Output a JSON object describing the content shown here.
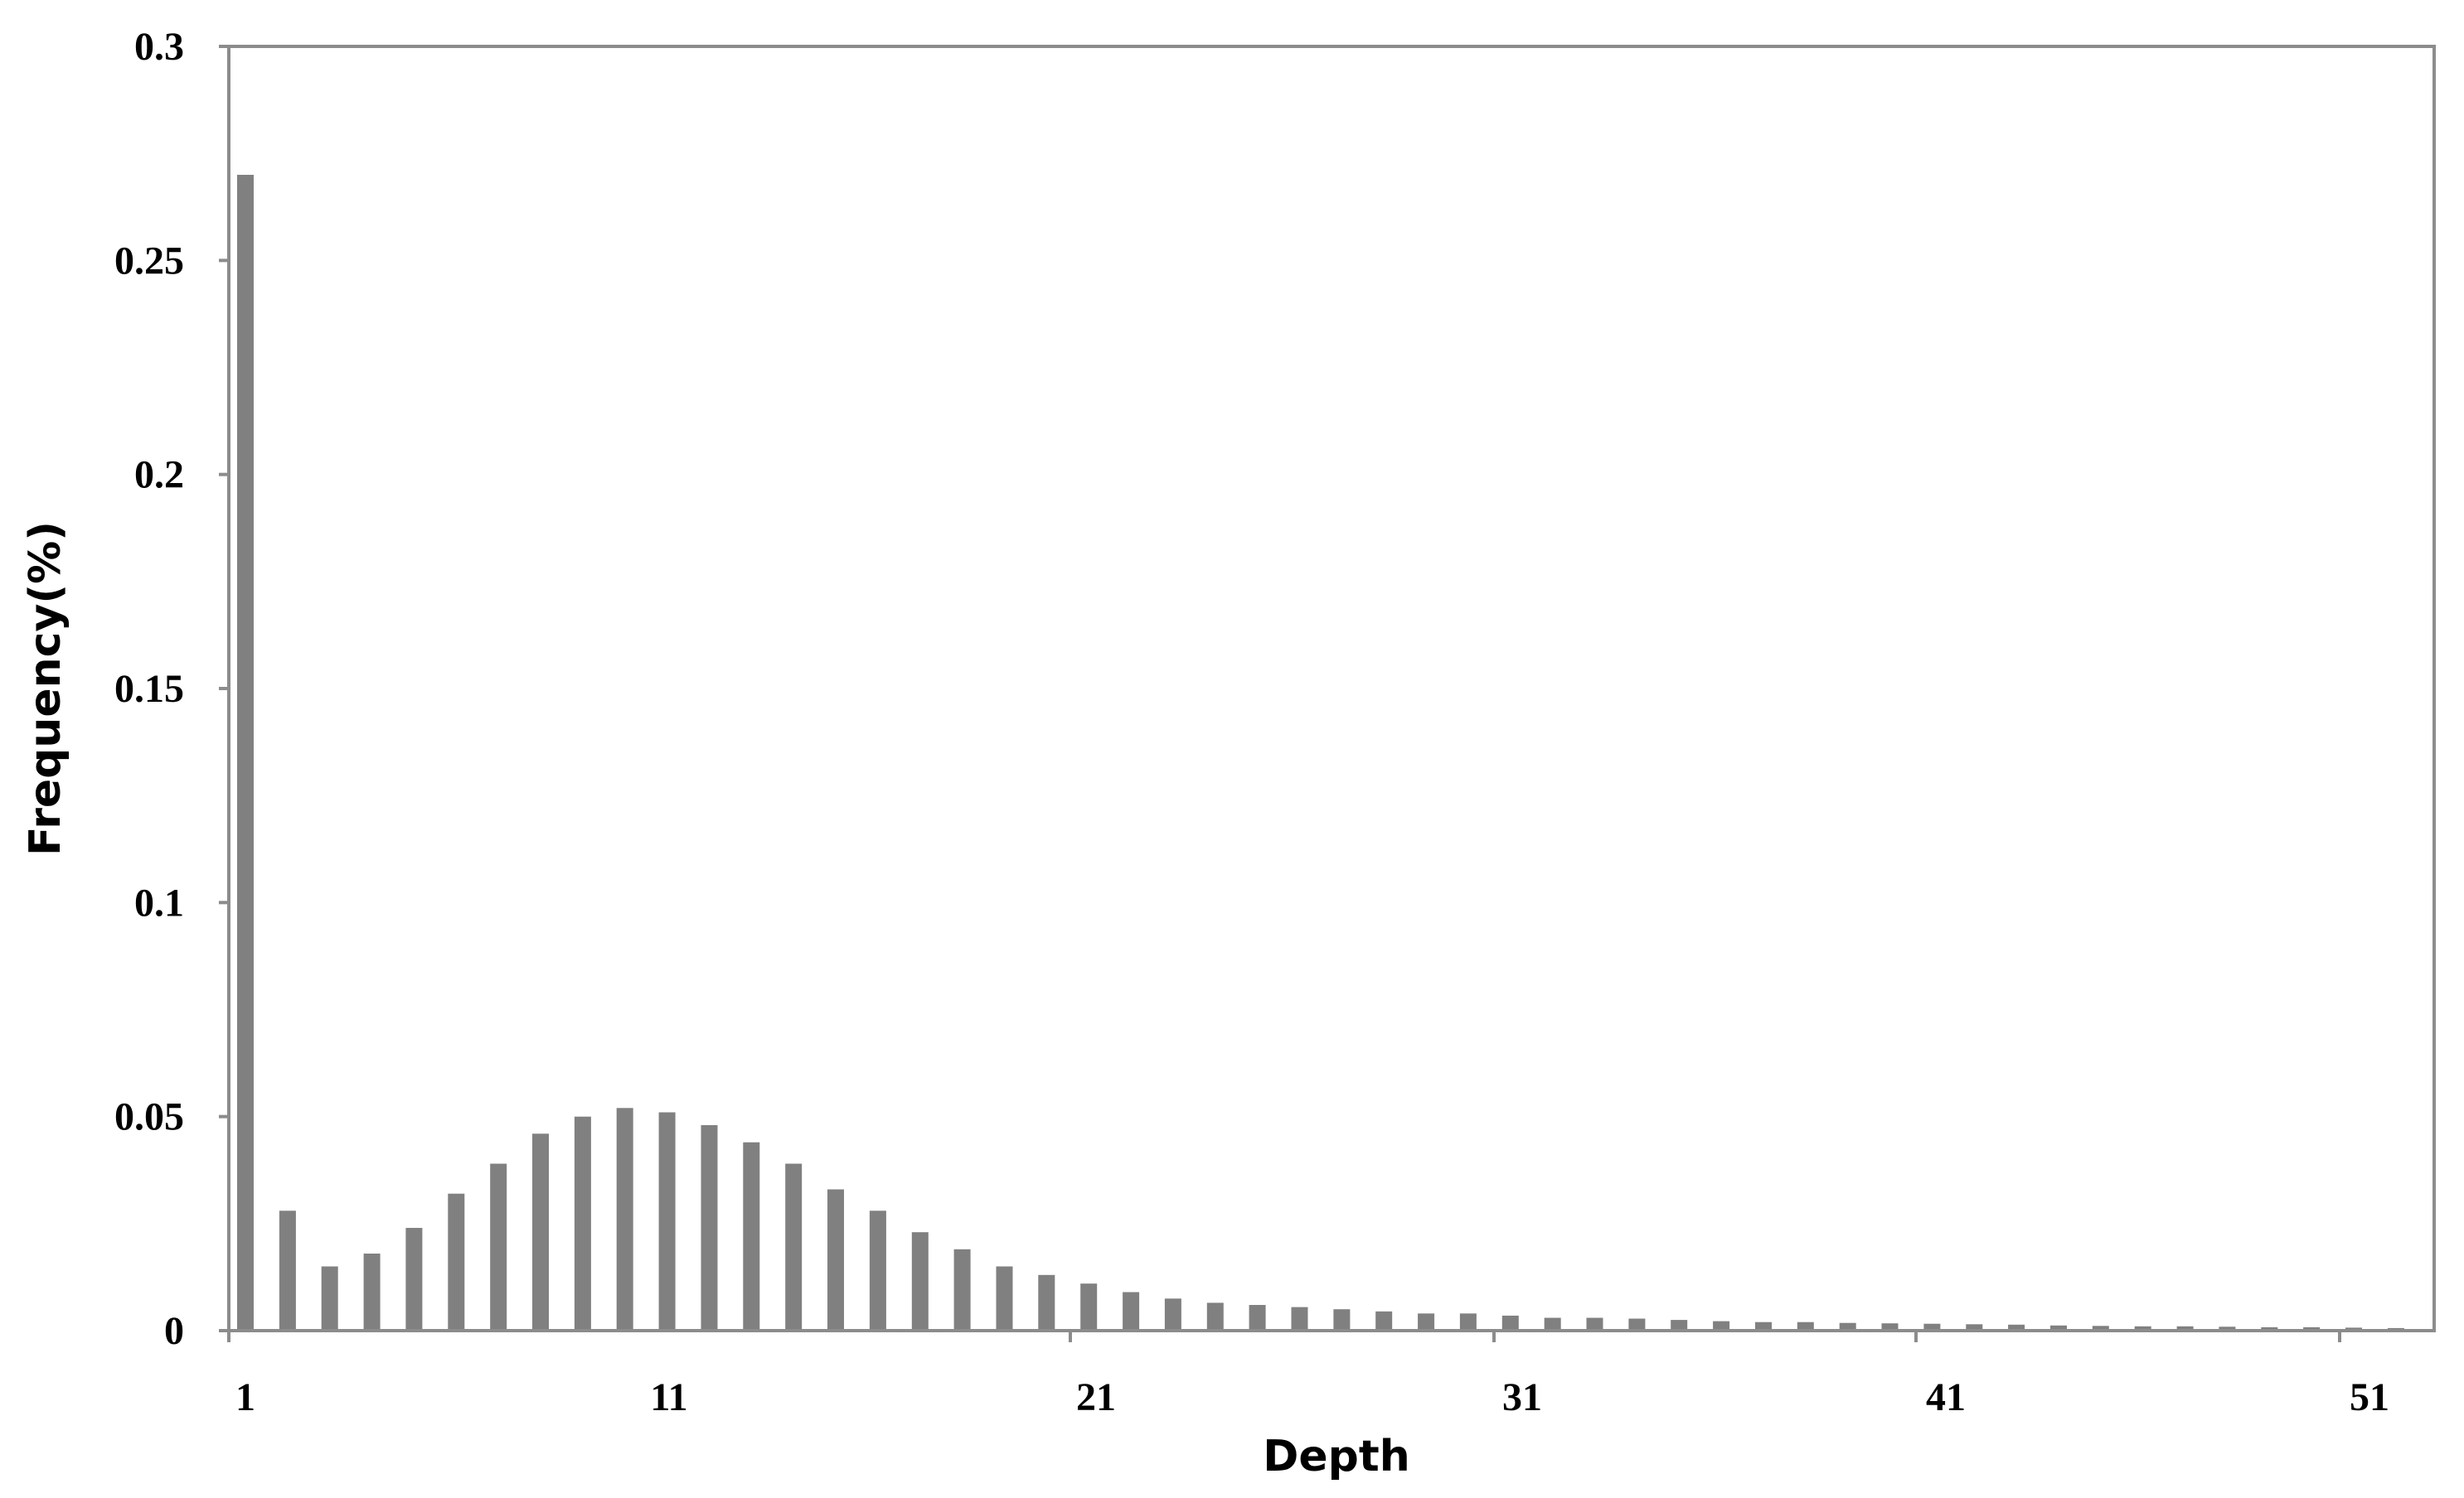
{
  "chart_data": {
    "type": "bar",
    "title": "",
    "xlabel": "Depth",
    "ylabel": "Frequency(%)",
    "x_tick_labels": [
      "1",
      "11",
      "21",
      "31",
      "41",
      "51"
    ],
    "y_tick_labels": [
      "0",
      "0.05",
      "0.1",
      "0.15",
      "0.2",
      "0.25",
      "0.3"
    ],
    "ylim": [
      0,
      0.3
    ],
    "grid": false,
    "legend": "none",
    "bar_color": "#808080",
    "categories": [
      1,
      2,
      3,
      4,
      5,
      6,
      7,
      8,
      9,
      10,
      11,
      12,
      13,
      14,
      15,
      16,
      17,
      18,
      19,
      20,
      21,
      22,
      23,
      24,
      25,
      26,
      27,
      28,
      29,
      30,
      31,
      32,
      33,
      34,
      35,
      36,
      37,
      38,
      39,
      40,
      41,
      42,
      43,
      44,
      45,
      46,
      47,
      48,
      49,
      50,
      51,
      52
    ],
    "values": [
      0.27,
      0.028,
      0.015,
      0.018,
      0.024,
      0.032,
      0.039,
      0.046,
      0.05,
      0.052,
      0.051,
      0.048,
      0.044,
      0.039,
      0.033,
      0.028,
      0.023,
      0.019,
      0.015,
      0.013,
      0.011,
      0.009,
      0.0075,
      0.0065,
      0.006,
      0.0055,
      0.005,
      0.0045,
      0.004,
      0.004,
      0.0035,
      0.003,
      0.003,
      0.0028,
      0.0025,
      0.0022,
      0.002,
      0.002,
      0.0018,
      0.0017,
      0.0016,
      0.0015,
      0.0014,
      0.0012,
      0.0011,
      0.001,
      0.001,
      0.0009,
      0.0008,
      0.0008,
      0.0007,
      0.0006
    ]
  }
}
